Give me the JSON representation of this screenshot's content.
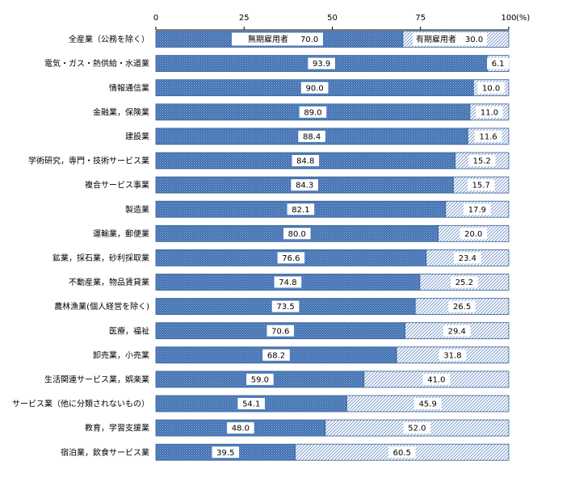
{
  "chart_data": {
    "type": "bar",
    "orientation": "horizontal",
    "stacked": true,
    "xlim": [
      0,
      100
    ],
    "x_ticks": [
      "0",
      "25",
      "50",
      "75",
      "100"
    ],
    "unit_label": "(%)",
    "categories": [
      "全産業（公務を除く）",
      "電気・ガス・熱供給・水道業",
      "情報通信業",
      "金融業，保険業",
      "建設業",
      "学術研究，専門・技術サービス業",
      "複合サービス事業",
      "製造業",
      "運輸業，郵便業",
      "鉱業，採石業，砂利採取業",
      "不動産業，物品賃貸業",
      "農林漁業(個人経営を除く)",
      "医療，福祉",
      "卸売業，小売業",
      "生活関連サービス業，娯楽業",
      "サービス業（他に分類されないもの）",
      "教育，学習支援業",
      "宿泊業，飲食サービス業"
    ],
    "series": [
      {
        "name": "無期雇用者",
        "values": [
          70.0,
          93.9,
          90.0,
          89.0,
          88.4,
          84.8,
          84.3,
          82.1,
          80.0,
          76.6,
          74.8,
          73.5,
          70.6,
          68.2,
          59.0,
          54.1,
          48.0,
          39.5
        ],
        "labels": [
          "70.0",
          "93.9",
          "90.0",
          "89.0",
          "88.4",
          "84.8",
          "84.3",
          "82.1",
          "80.0",
          "76.6",
          "74.8",
          "73.5",
          "70.6",
          "68.2",
          "59.0",
          "54.1",
          "48.0",
          "39.5"
        ]
      },
      {
        "name": "有期雇用者",
        "values": [
          30.0,
          6.1,
          10.0,
          11.0,
          11.6,
          15.2,
          15.7,
          17.9,
          20.0,
          23.4,
          25.2,
          26.5,
          29.4,
          31.8,
          41.0,
          45.9,
          52.0,
          60.5
        ],
        "labels": [
          "30.0",
          "6.1",
          "10.0",
          "11.0",
          "11.6",
          "15.2",
          "15.7",
          "17.9",
          "20.0",
          "23.4",
          "25.2",
          "26.5",
          "29.4",
          "31.8",
          "41.0",
          "45.9",
          "52.0",
          "60.5"
        ]
      }
    ],
    "colors": {
      "series_0": "#4f81bd",
      "series_1": "#c8d6ea",
      "outline": "#365f91"
    }
  }
}
